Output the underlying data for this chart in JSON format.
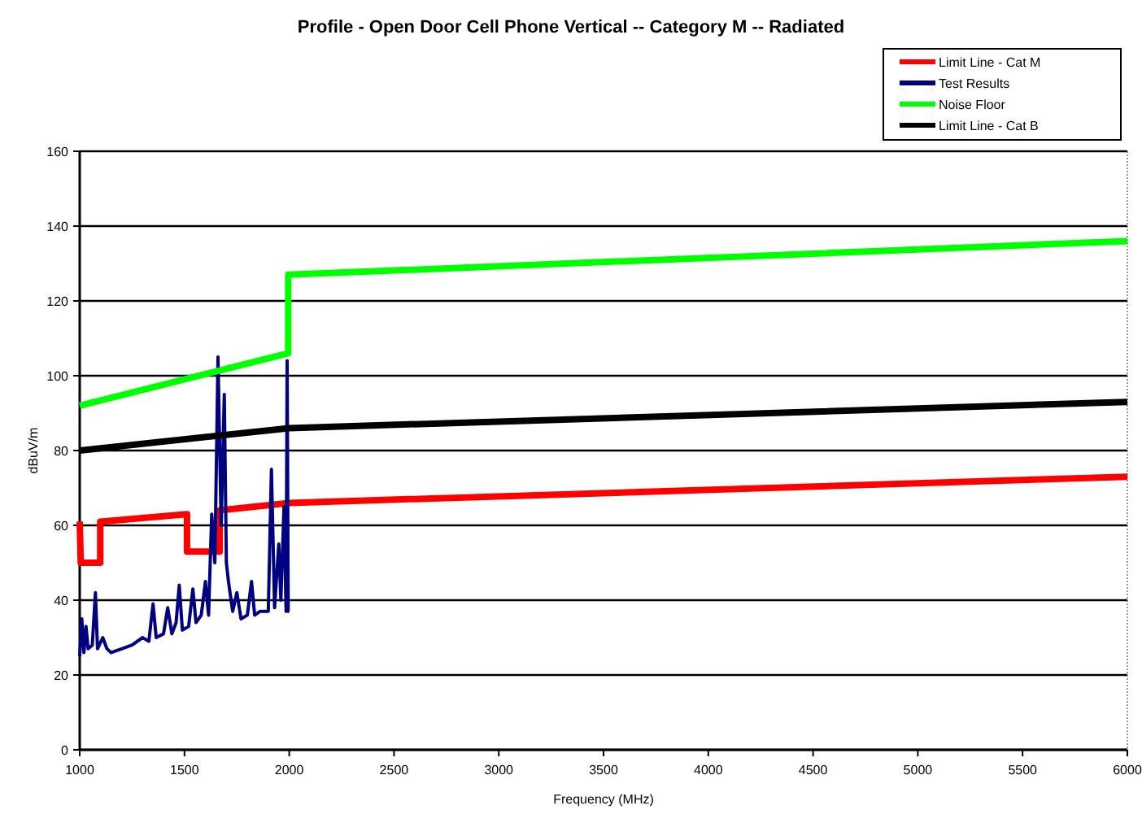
{
  "chart_data": {
    "type": "line",
    "title": "Profile - Open Door Cell Phone Vertical  -- Category M -- Radiated",
    "xlabel": "Frequency (MHz)",
    "ylabel": "dBuV/m",
    "xlim": [
      1000,
      6000
    ],
    "xticks": [
      1000,
      1500,
      2000,
      2500,
      3000,
      3500,
      4000,
      4500,
      5000,
      5500,
      6000
    ],
    "ylim": [
      0,
      160
    ],
    "yticks": [
      0,
      20,
      40,
      60,
      80,
      100,
      120,
      140,
      160
    ],
    "grid": "y",
    "legend": "top right",
    "marker": "none",
    "line_style": "solid",
    "series": [
      {
        "name": "Limit Line - Cat M",
        "color": "#ff0000",
        "x": [
          1000,
          1005,
          1098,
          1098,
          1512,
          1512,
          1668,
          1668,
          2000,
          6000
        ],
        "values": [
          61,
          50,
          50,
          61,
          63,
          53,
          53,
          64,
          66,
          73
        ]
      },
      {
        "name": "Test Results",
        "color": "#000080",
        "x": [
          1000,
          1010,
          1020,
          1030,
          1040,
          1060,
          1075,
          1085,
          1110,
          1130,
          1150,
          1200,
          1250,
          1300,
          1330,
          1350,
          1365,
          1400,
          1420,
          1440,
          1460,
          1475,
          1490,
          1520,
          1540,
          1555,
          1580,
          1600,
          1615,
          1630,
          1645,
          1660,
          1675,
          1690,
          1700,
          1710,
          1730,
          1750,
          1770,
          1800,
          1820,
          1835,
          1860,
          1900,
          1915,
          1930,
          1950,
          1960,
          1975,
          1985,
          1990,
          1995,
          2000
        ],
        "values": [
          25,
          35,
          26,
          33,
          27,
          28,
          42,
          27,
          30,
          27,
          26,
          27,
          28,
          30,
          29,
          39,
          30,
          31,
          38,
          31,
          34,
          44,
          32,
          33,
          43,
          34,
          36,
          45,
          36,
          63,
          50,
          105,
          60,
          95,
          50,
          45,
          37,
          42,
          35,
          36,
          45,
          36,
          37,
          37,
          75,
          38,
          55,
          40,
          65,
          37,
          104,
          37,
          37
        ]
      },
      {
        "name": "Noise Floor",
        "color": "#00ff00",
        "x": [
          1000,
          1995,
          1995,
          6000
        ],
        "values": [
          92,
          106,
          127,
          136
        ]
      },
      {
        "name": "Limit Line - Cat B",
        "color": "#000000",
        "x": [
          1000,
          2000,
          6000
        ],
        "values": [
          80,
          86,
          93
        ]
      }
    ]
  }
}
